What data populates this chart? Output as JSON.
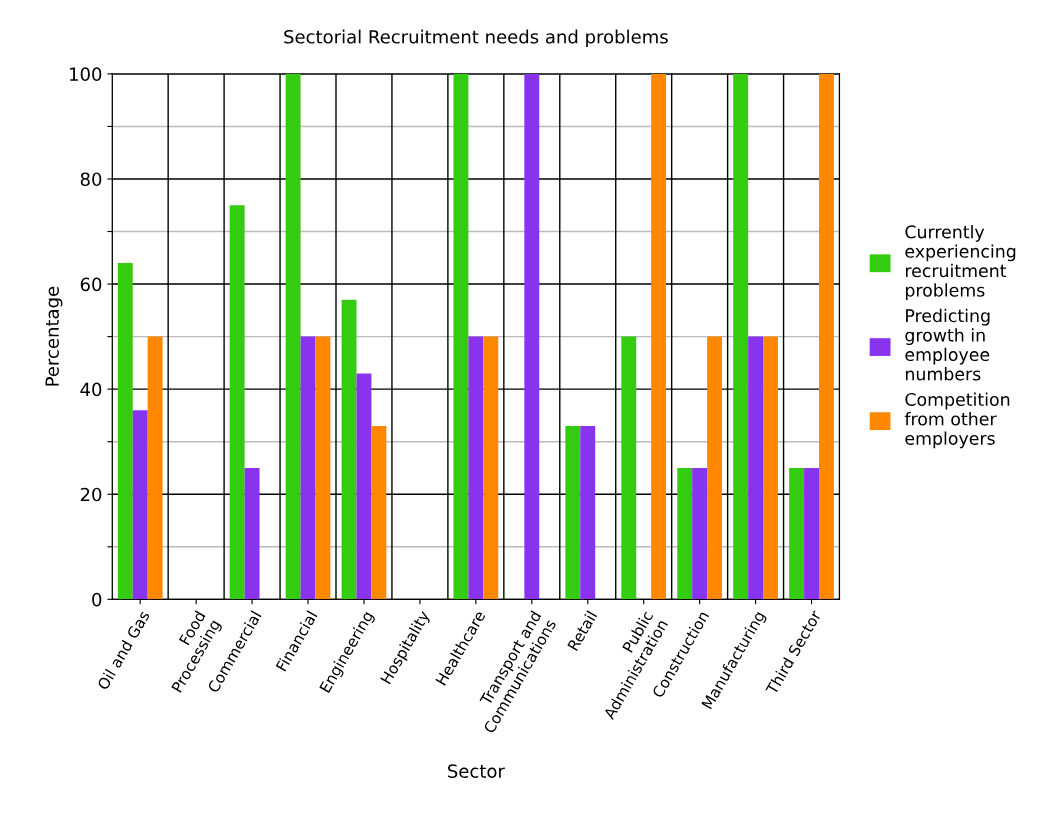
{
  "chart_data": {
    "type": "bar",
    "title": "Sectorial Recruitment needs and problems",
    "xlabel": "Sector",
    "ylabel": "Percentage",
    "categories": [
      "Oil and Gas",
      "Food\nProcessing",
      "Commercial",
      "Financial",
      "Engineering",
      "Hospitality",
      "Healthcare",
      "Transport and\nCommunications",
      "Retail",
      "Public\nAdministration",
      "Construction",
      "Manufacturing",
      "Third Sector"
    ],
    "series": [
      {
        "name": "Currently\nexperiencing\nrecruitment\nproblems",
        "color": "#33cc11",
        "values": [
          64,
          0,
          75,
          100,
          57,
          0,
          100,
          0,
          33,
          50,
          25,
          100,
          25
        ]
      },
      {
        "name": "Predicting\ngrowth in\nemployee\nnumbers",
        "color": "#8833ee",
        "values": [
          36,
          0,
          25,
          50,
          43,
          0,
          50,
          100,
          33,
          0,
          25,
          50,
          25
        ]
      },
      {
        "name": "Competition\nfrom other\nemployers",
        "color": "#ff8800",
        "values": [
          50,
          0,
          0,
          50,
          33,
          0,
          50,
          0,
          0,
          100,
          50,
          50,
          100
        ]
      }
    ],
    "ylim": [
      0,
      100
    ],
    "yticks": [
      0,
      {
        "value": 10,
        "label": null
      },
      20,
      {
        "value": 30,
        "label": null
      },
      40,
      {
        "value": 50,
        "label": null
      },
      60,
      {
        "value": 70,
        "label": null
      },
      80,
      {
        "value": 90,
        "label": null
      },
      100
    ],
    "grid": true,
    "legend": "right"
  }
}
